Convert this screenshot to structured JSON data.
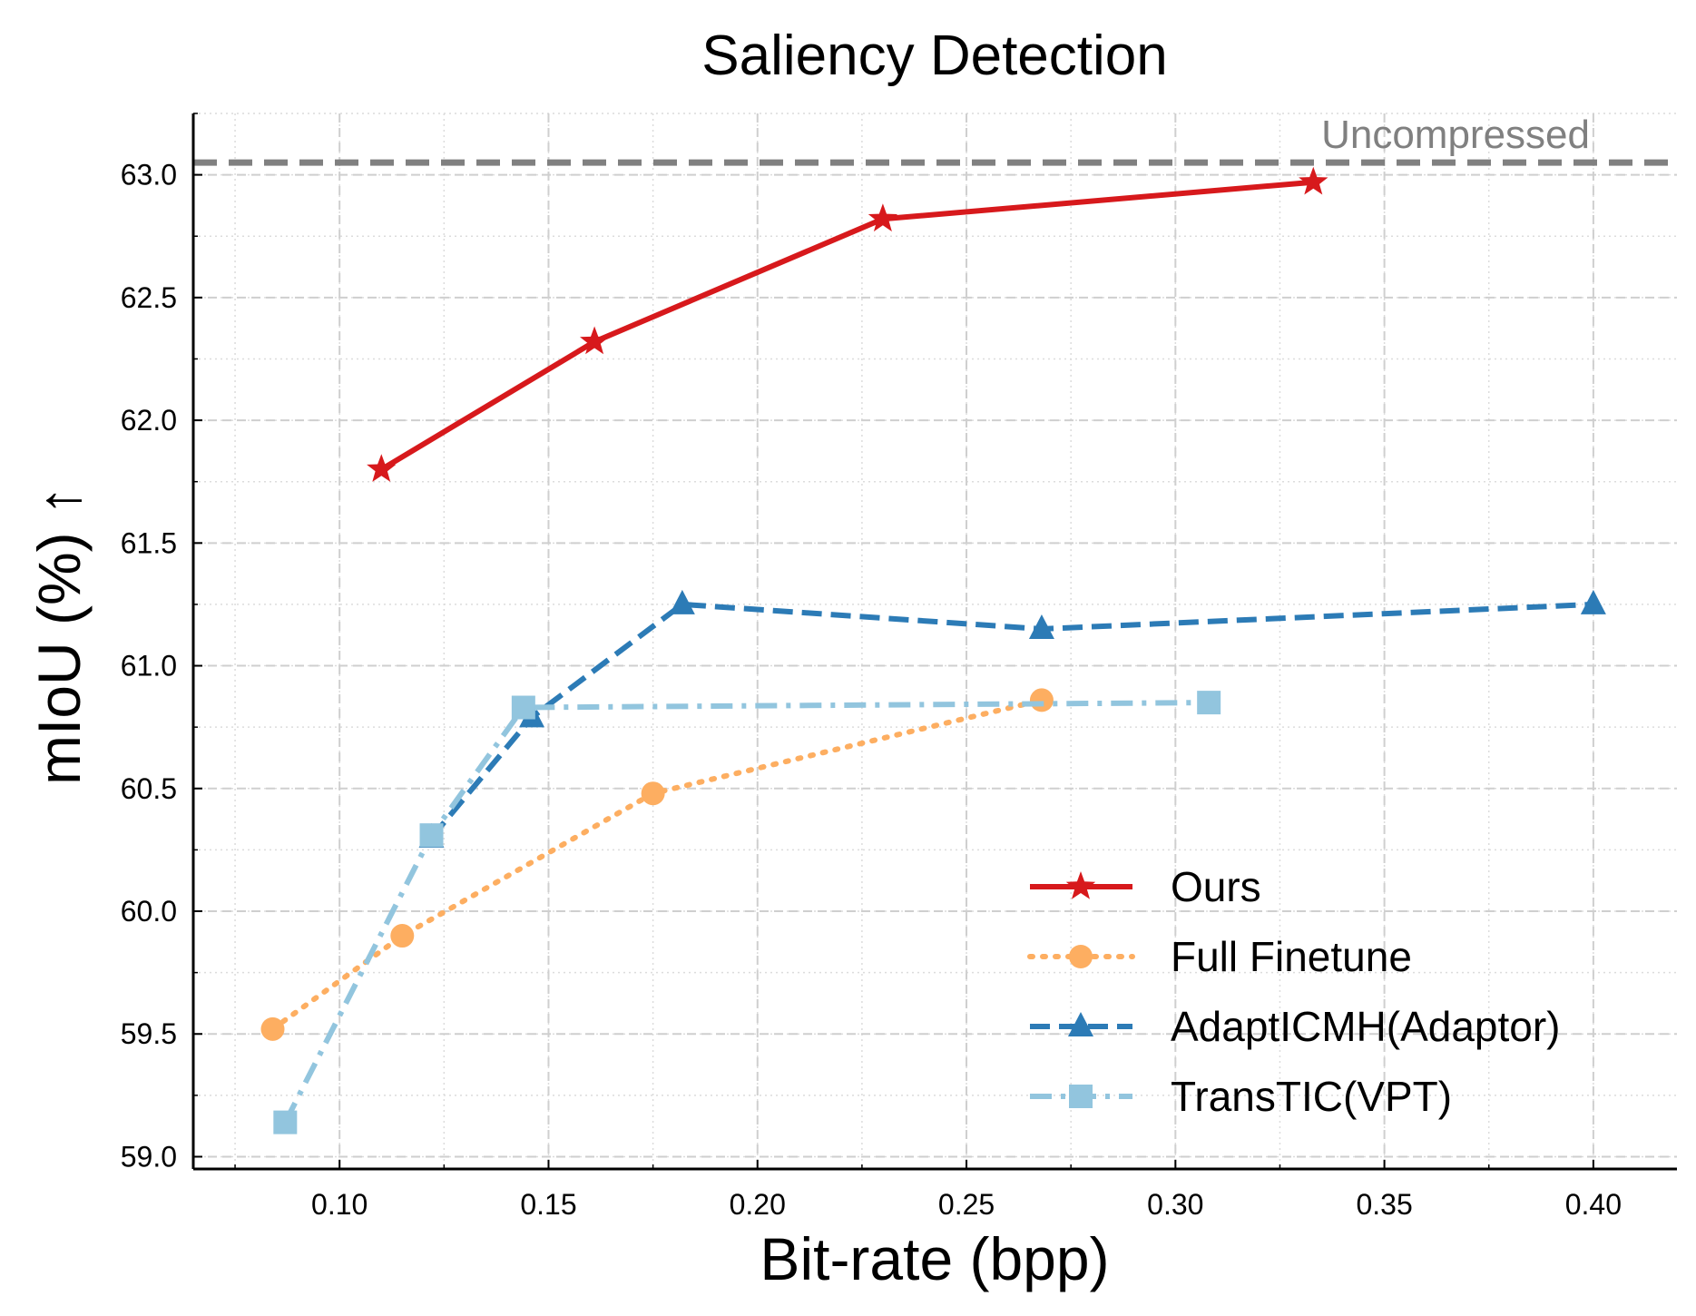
{
  "chart_data": {
    "type": "line",
    "title": "Saliency Detection",
    "xlabel": "Bit-rate (bpp)",
    "ylabel": "mIoU (%) ↑",
    "xlim": [
      0.065,
      0.42
    ],
    "ylim": [
      58.95,
      63.25
    ],
    "xticks": [
      0.1,
      0.15,
      0.2,
      0.25,
      0.3,
      0.35,
      0.4
    ],
    "xtick_labels": [
      "0.10",
      "0.15",
      "0.20",
      "0.25",
      "0.30",
      "0.35",
      "0.40"
    ],
    "yticks": [
      59.0,
      59.5,
      60.0,
      60.5,
      61.0,
      61.5,
      62.0,
      62.5,
      63.0
    ],
    "ytick_labels": [
      "59.0",
      "59.5",
      "60.0",
      "60.5",
      "61.0",
      "61.5",
      "62.0",
      "62.5",
      "63.0"
    ],
    "grid": true,
    "legend_position": "bottom-right",
    "reference_line": {
      "label": "Uncompressed",
      "y": 63.05,
      "color": "#808080"
    },
    "series": [
      {
        "name": "Ours",
        "color": "#d7191c",
        "line_style": "solid",
        "marker": "star",
        "x": [
          0.11,
          0.161,
          0.23,
          0.333
        ],
        "y": [
          61.8,
          62.32,
          62.82,
          62.97
        ]
      },
      {
        "name": "Full Finetune",
        "color": "#fdae61",
        "line_style": "dotted",
        "marker": "circle",
        "x": [
          0.084,
          0.115,
          0.175,
          0.268
        ],
        "y": [
          59.52,
          59.9,
          60.48,
          60.86
        ]
      },
      {
        "name": "AdaptICMH(Adaptor)",
        "color": "#2c7bb6",
        "line_style": "dashed",
        "marker": "triangle",
        "x": [
          0.122,
          0.146,
          0.182,
          0.268,
          0.4
        ],
        "y": [
          60.3,
          60.79,
          61.25,
          61.15,
          61.25
        ]
      },
      {
        "name": "TransTIC(VPT)",
        "color": "#92c5de",
        "line_style": "dashdot",
        "marker": "square",
        "x": [
          0.087,
          0.122,
          0.144,
          0.308
        ],
        "y": [
          59.14,
          60.31,
          60.83,
          60.85
        ]
      }
    ]
  }
}
